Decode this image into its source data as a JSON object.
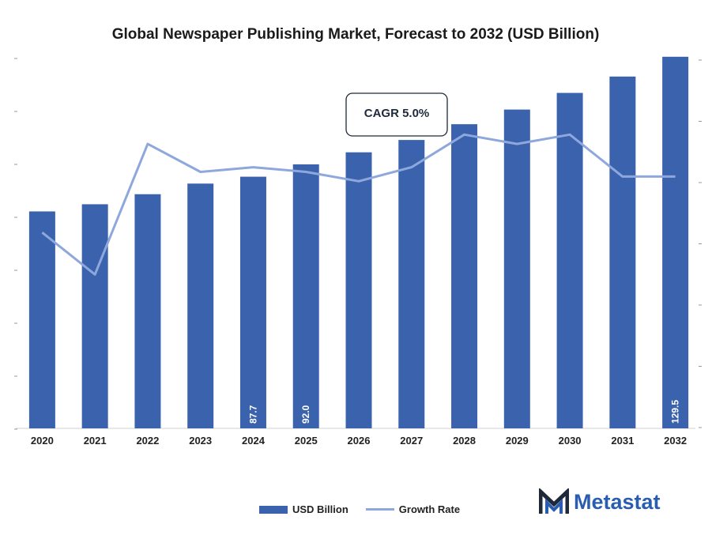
{
  "chart_data": {
    "type": "bar",
    "title": "Global Newspaper Publishing Market, Forecast to 2032 (USD Billion)",
    "categories": [
      "2020",
      "2021",
      "2022",
      "2023",
      "2024",
      "2025",
      "2026",
      "2027",
      "2028",
      "2029",
      "2030",
      "2031",
      "2032"
    ],
    "series": [
      {
        "name": "USD Billion",
        "type": "bar",
        "color": "#3b63ad",
        "values": [
          75.6,
          78.1,
          81.6,
          85.3,
          87.7,
          92.0,
          96.2,
          100.5,
          106.0,
          111.1,
          116.9,
          122.6,
          129.5
        ],
        "data_labels": [
          "",
          "",
          "",
          "",
          "87.7",
          "92.0",
          "",
          "",
          "",
          "",
          "",
          "",
          "129.5"
        ]
      },
      {
        "name": "Growth Rate",
        "type": "line",
        "color": "#8ea7dc",
        "values": [
          4.2,
          3.3,
          6.1,
          5.5,
          5.6,
          5.5,
          5.3,
          5.6,
          6.3,
          6.1,
          6.3,
          5.4,
          5.4
        ]
      }
    ],
    "ylim_left": [
      0,
      130
    ],
    "ylim_right": [
      0,
      8
    ],
    "grid": false,
    "legend_position": "bottom",
    "annotation": "CAGR 5.0%"
  },
  "brand": {
    "name": "Metastat"
  }
}
